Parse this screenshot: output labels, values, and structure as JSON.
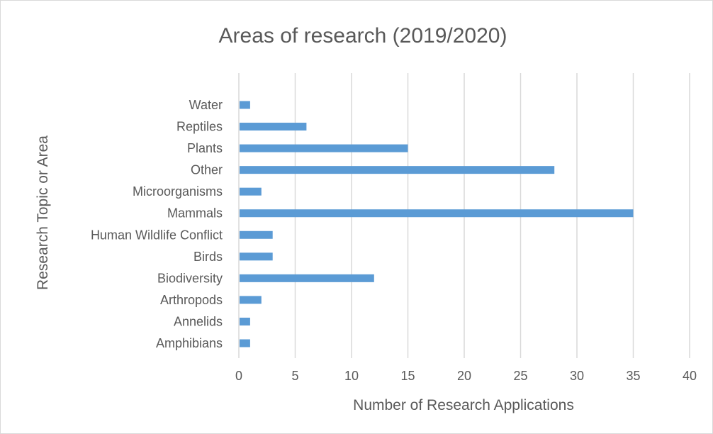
{
  "chart_data": {
    "type": "bar",
    "orientation": "horizontal",
    "title": "Areas of research (2019/2020)",
    "xlabel": "Number of Research Applications",
    "ylabel": "Research Topic or Area",
    "categories": [
      "Water",
      "Reptiles",
      "Plants",
      "Other",
      "Microorganisms",
      "Mammals",
      "Human Wildlife Conflict",
      "Birds",
      "Biodiversity",
      "Arthropods",
      "Annelids",
      "Amphibians"
    ],
    "values": [
      1,
      6,
      15,
      28,
      2,
      35,
      3,
      3,
      12,
      2,
      1,
      1
    ],
    "xlim": [
      0,
      40
    ],
    "xticks": [
      0,
      5,
      10,
      15,
      20,
      25,
      30,
      35,
      40
    ],
    "grid": "vertical",
    "legend": "none",
    "bar_color": "#5b9bd5",
    "grid_color": "#d9d9d9"
  }
}
